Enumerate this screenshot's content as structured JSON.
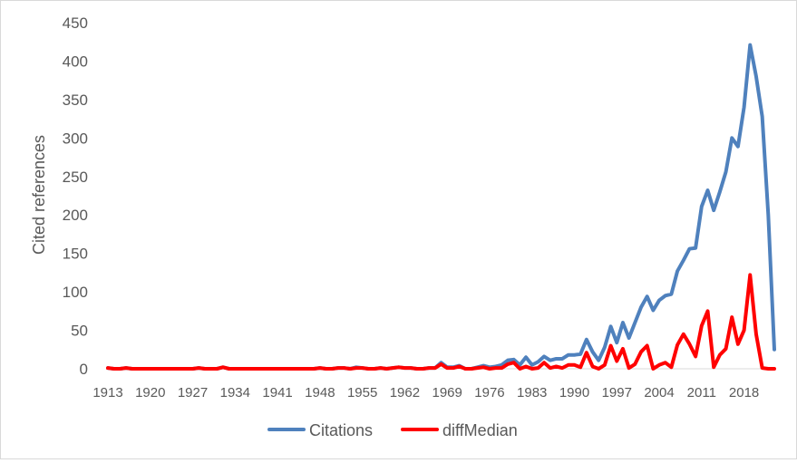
{
  "chart_data": {
    "type": "line",
    "title": "",
    "xlabel": "",
    "ylabel": "Cited references",
    "ylim": [
      0,
      450
    ],
    "yticks": [
      0,
      50,
      100,
      150,
      200,
      250,
      300,
      350,
      400,
      450
    ],
    "xtick_labels": [
      "1913",
      "1920",
      "1927",
      "1934",
      "1941",
      "1948",
      "1955",
      "1962",
      "1969",
      "1976",
      "1983",
      "1990",
      "1997",
      "2004",
      "2011",
      "2018"
    ],
    "grid": false,
    "legend_position": "bottom",
    "x": [
      1913,
      1914,
      1915,
      1916,
      1917,
      1918,
      1919,
      1920,
      1921,
      1922,
      1923,
      1924,
      1925,
      1926,
      1927,
      1928,
      1929,
      1930,
      1931,
      1932,
      1933,
      1934,
      1935,
      1936,
      1937,
      1938,
      1939,
      1940,
      1941,
      1942,
      1943,
      1944,
      1945,
      1946,
      1947,
      1948,
      1949,
      1950,
      1951,
      1952,
      1953,
      1954,
      1955,
      1956,
      1957,
      1958,
      1959,
      1960,
      1961,
      1962,
      1963,
      1964,
      1965,
      1966,
      1967,
      1968,
      1969,
      1970,
      1971,
      1972,
      1973,
      1974,
      1975,
      1976,
      1977,
      1978,
      1979,
      1980,
      1981,
      1982,
      1983,
      1984,
      1985,
      1986,
      1987,
      1988,
      1989,
      1990,
      1991,
      1992,
      1993,
      1994,
      1995,
      1996,
      1997,
      1998,
      1999,
      2000,
      2001,
      2002,
      2003,
      2004,
      2005,
      2006,
      2007,
      2008,
      2009,
      2010,
      2011,
      2012,
      2013,
      2014,
      2015,
      2016,
      2017,
      2018,
      2019,
      2020,
      2021,
      2022,
      2023
    ],
    "series": [
      {
        "name": "Citations",
        "color": "#4f81bd",
        "values": [
          1,
          0,
          0,
          1,
          0,
          0,
          0,
          0,
          0,
          0,
          0,
          0,
          0,
          0,
          0,
          1,
          0,
          0,
          0,
          2,
          0,
          0,
          0,
          0,
          0,
          0,
          0,
          0,
          0,
          0,
          0,
          0,
          0,
          0,
          0,
          1,
          0,
          0,
          1,
          1,
          0,
          2,
          1,
          0,
          0,
          1,
          0,
          1,
          2,
          1,
          1,
          0,
          0,
          1,
          1,
          8,
          2,
          2,
          4,
          0,
          0,
          2,
          4,
          2,
          3,
          5,
          11,
          12,
          5,
          15,
          5,
          9,
          16,
          11,
          13,
          13,
          18,
          18,
          19,
          38,
          22,
          11,
          28,
          55,
          34,
          60,
          40,
          60,
          80,
          94,
          76,
          89,
          95,
          97,
          127,
          141,
          156,
          157,
          211,
          232,
          206,
          230,
          256,
          300,
          289,
          340,
          421,
          380,
          328,
          200,
          25
        ],
        "end_index": 110
      },
      {
        "name": "diffMedian",
        "color": "#ff0000",
        "values": [
          1,
          0,
          0,
          1,
          0,
          0,
          0,
          0,
          0,
          0,
          0,
          0,
          0,
          0,
          0,
          1,
          0,
          0,
          0,
          2,
          0,
          0,
          0,
          0,
          0,
          0,
          0,
          0,
          0,
          0,
          0,
          0,
          0,
          0,
          0,
          1,
          0,
          0,
          1,
          1,
          0,
          1,
          1,
          0,
          0,
          1,
          0,
          1,
          2,
          1,
          1,
          0,
          0,
          1,
          1,
          6,
          1,
          1,
          3,
          0,
          0,
          1,
          2,
          0,
          1,
          1,
          6,
          8,
          0,
          3,
          0,
          1,
          8,
          1,
          3,
          1,
          5,
          5,
          2,
          21,
          3,
          0,
          5,
          30,
          10,
          26,
          1,
          6,
          22,
          30,
          0,
          5,
          8,
          2,
          31,
          45,
          32,
          16,
          56,
          75,
          2,
          18,
          26,
          67,
          32,
          50,
          122,
          45,
          1,
          0,
          0
        ],
        "end_index": 111
      }
    ]
  }
}
